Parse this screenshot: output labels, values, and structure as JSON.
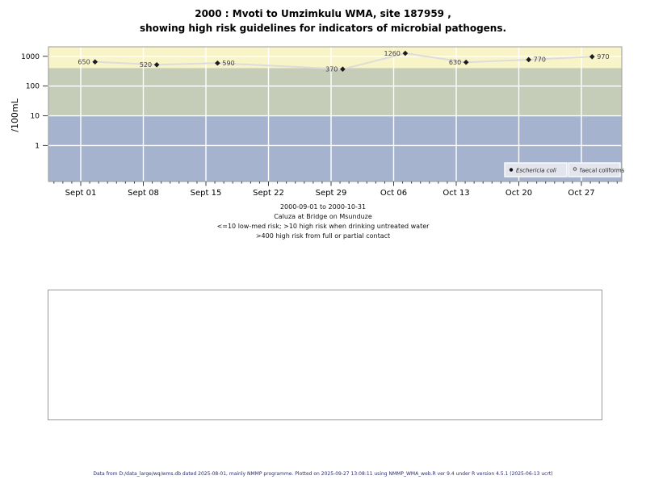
{
  "title": {
    "line1": "2000 : Mvoti to Umzimkulu WMA, site 187959 ,",
    "line2": "showing high risk guidelines for indicators of microbial pathogens."
  },
  "chart_data": {
    "type": "scatter",
    "title": "2000 : Mvoti to Umzimkulu WMA, site 187959 , showing high risk guidelines for indicators of microbial pathogens.",
    "ylabel": "/100mL",
    "xlabel": "",
    "y_scale": "log10",
    "y_ticks": [
      1,
      10,
      100,
      1000
    ],
    "y_tick_labels": [
      "1",
      "10",
      "100",
      "1000"
    ],
    "y_range_log": [
      -1.21,
      3.32
    ],
    "x_ticks": [
      {
        "day": 0,
        "label": "Sept 01"
      },
      {
        "day": 7,
        "label": "Sept 08"
      },
      {
        "day": 14,
        "label": "Sept 15"
      },
      {
        "day": 21,
        "label": "Sept 22"
      },
      {
        "day": 28,
        "label": "Sept 29"
      },
      {
        "day": 35,
        "label": "Oct 06"
      },
      {
        "day": 42,
        "label": "Oct 13"
      },
      {
        "day": 49,
        "label": "Oct 20"
      },
      {
        "day": 56,
        "label": "Oct 27"
      }
    ],
    "x_minor_day_range": [
      -3,
      60
    ],
    "grid": true,
    "grid_color": "#ffffff",
    "bands": [
      {
        "name": "above-400-high-risk-contact",
        "from": 400,
        "to": null,
        "color": "#f8f4c8"
      },
      {
        "name": "10-to-400-high-risk-drinking",
        "from": 10,
        "to": 400,
        "color": "#c5ccb8"
      },
      {
        "name": "below-10-low-med-risk",
        "from": null,
        "to": 10,
        "color": "#a5b3ce"
      }
    ],
    "series": [
      {
        "name": "Eschericia coli",
        "marker": "diamond-filled",
        "marker_color": "#1c1c1c",
        "line_color": "#dcdcdc",
        "label_color": "#3c3c3c",
        "points": [
          {
            "day": 1.6,
            "value": 650,
            "label": "650",
            "label_side": "left"
          },
          {
            "day": 8.5,
            "value": 520,
            "label": "520",
            "label_side": "left"
          },
          {
            "day": 15.3,
            "value": 590,
            "label": "590",
            "label_side": "right"
          },
          {
            "day": 29.3,
            "value": 370,
            "label": "370",
            "label_side": "left"
          },
          {
            "day": 36.3,
            "value": 1260,
            "label": "1260",
            "label_side": "left"
          },
          {
            "day": 43.1,
            "value": 630,
            "label": "630",
            "label_side": "left"
          },
          {
            "day": 50.1,
            "value": 770,
            "label": "770",
            "label_side": "right"
          },
          {
            "day": 57.2,
            "value": 970,
            "label": "970",
            "label_side": "right"
          }
        ]
      },
      {
        "name": "faecal coliforms",
        "marker": "circle-open",
        "marker_color": "#444444",
        "points": []
      }
    ],
    "legend": {
      "position": "bottom-right-inside",
      "box_fill": "#e3e5ec",
      "box_border": "#fafafa",
      "items": [
        {
          "label": "Eschericia coli",
          "marker": "circle-filled",
          "italic": true
        },
        {
          "label": "faecal coliforms",
          "marker": "circle-open",
          "italic": false
        }
      ]
    },
    "axis_color": "#3a3a3a",
    "panel_border_color": "#999999"
  },
  "caption": {
    "line1": "2000-09-01 to 2000-10-31",
    "line2": "Caluza at Bridge on Msunduze",
    "line3": "<=10 low-med risk; >10 high risk when drinking untreated water",
    "line4": ">400 high risk from full or partial contact"
  },
  "footer": {
    "text": "Data from D:/data_large/wq/wms.db dated 2025-08-01, mainly NMMP programme. Plotted on 2025-09-27 13:08:11 using NMMP_WMA_web.R ver 9.4 under R version 4.5.1 (2025-06-13 ucrt)"
  }
}
